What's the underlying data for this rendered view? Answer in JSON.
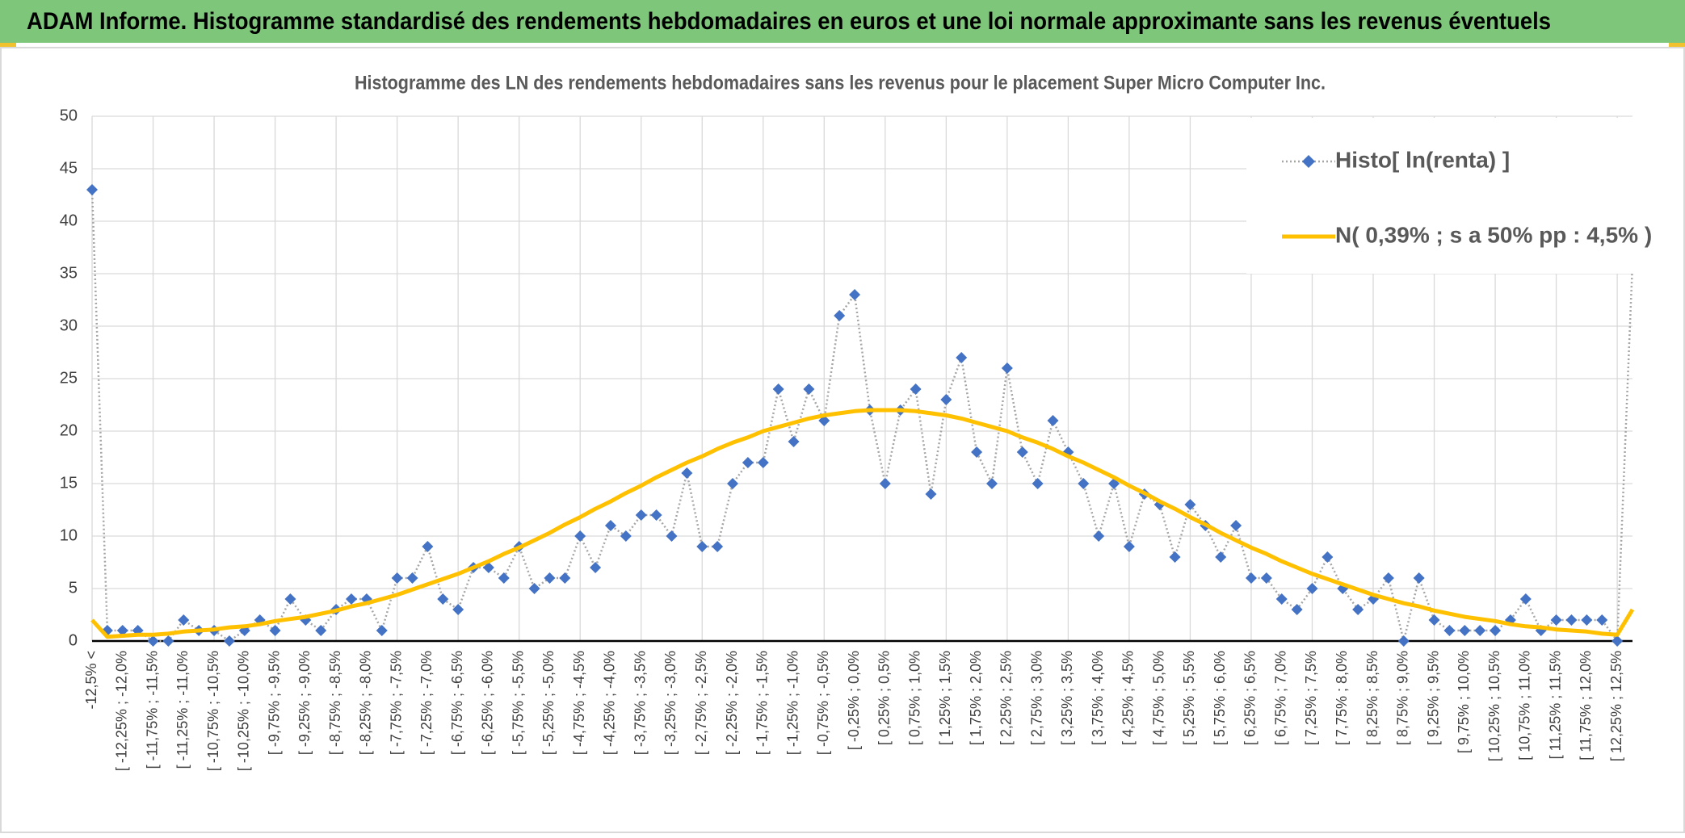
{
  "chart_data": {
    "type": "line",
    "title": "ADAM Informe. Histogramme standardisé des rendements hebdomadaires en euros et une loi normale approximante sans les revenus éventuels",
    "subtitle": "Histogramme des LN des rendements hebdomadaires sans les revenus pour le placement Super Micro Computer Inc.",
    "categories": [
      "-12,5% <",
      null,
      "[ -12,25% ; -12,0%",
      null,
      "[ -11,75% ; -11,5%",
      null,
      "[ -11,25% ; -11,0%",
      null,
      "[ -10,75% ; -10,5%",
      null,
      "[ -10,25% ; -10,0%",
      null,
      "[ -9,75% ; -9,5%",
      null,
      "[ -9,25% ; -9,0%",
      null,
      "[ -8,75% ; -8,5%",
      null,
      "[ -8,25% ; -8,0%",
      null,
      "[ -7,75% ; -7,5%",
      null,
      "[ -7,25% ; -7,0%",
      null,
      "[ -6,75% ; -6,5%",
      null,
      "[ -6,25% ; -6,0%",
      null,
      "[ -5,75% ; -5,5%",
      null,
      "[ -5,25% ; -5,0%",
      null,
      "[ -4,75% ; -4,5%",
      null,
      "[ -4,25% ; -4,0%",
      null,
      "[ -3,75% ; -3,5%",
      null,
      "[ -3,25% ; -3,0%",
      null,
      "[ -2,75% ; -2,5%",
      null,
      "[ -2,25% ; -2,0%",
      null,
      "[ -1,75% ; -1,5%",
      null,
      "[ -1,25% ; -1,0%",
      null,
      "[ -0,75% ; -0,5%",
      null,
      "[ -0,25% ; 0,0%",
      null,
      "[ 0,25% ; 0,5%",
      null,
      "[ 0,75% ; 1,0%",
      null,
      "[ 1,25% ; 1,5%",
      null,
      "[ 1,75% ; 2,0%",
      null,
      "[ 2,25% ; 2,5%",
      null,
      "[ 2,75% ; 3,0%",
      null,
      "[ 3,25% ; 3,5%",
      null,
      "[ 3,75% ; 4,0%",
      null,
      "[ 4,25% ; 4,5%",
      null,
      "[ 4,75% ; 5,0%",
      null,
      "[ 5,25% ; 5,5%",
      null,
      "[ 5,75% ; 6,0%",
      null,
      "[ 6,25% ; 6,5%",
      null,
      "[ 6,75% ; 7,0%",
      null,
      "[ 7,25% ; 7,5%",
      null,
      "[ 7,75% ; 8,0%",
      null,
      "[ 8,25% ; 8,5%",
      null,
      "[ 8,75% ; 9,0%",
      null,
      "[ 9,25% ; 9,5%",
      null,
      "[ 9,75% ; 10,0%",
      null,
      "[ 10,25% ; 10,5%",
      null,
      "[ 10,75% ; 11,0%",
      null,
      "[ 11,25% ; 11,5%",
      null,
      "[ 11,75% ; 12,0%",
      null,
      "[ 12,25% ; 12,5%",
      null
    ],
    "series": [
      {
        "name": "Histo[ ln(renta) ]",
        "color": "#4472c4",
        "line_color": "#a6a6a6",
        "marker": "diamond",
        "values": [
          43,
          1,
          1,
          1,
          0,
          0,
          2,
          1,
          1,
          0,
          1,
          2,
          1,
          4,
          2,
          1,
          3,
          4,
          4,
          1,
          6,
          6,
          9,
          4,
          3,
          7,
          7,
          6,
          9,
          5,
          6,
          6,
          10,
          7,
          11,
          10,
          12,
          12,
          10,
          16,
          9,
          9,
          15,
          17,
          17,
          24,
          19,
          24,
          21,
          31,
          33,
          22,
          15,
          22,
          24,
          14,
          23,
          27,
          18,
          15,
          26,
          18,
          15,
          21,
          18,
          15,
          10,
          15,
          9,
          14,
          13,
          8,
          13,
          11,
          8,
          11,
          6,
          6,
          4,
          3,
          5,
          8,
          5,
          3,
          4,
          6,
          0,
          6,
          2,
          1,
          1,
          1,
          1,
          2,
          4,
          1,
          2,
          2,
          2,
          2,
          0,
          36
        ]
      },
      {
        "name": "N( 0,39% ; s a 50% pp : 4,5% )",
        "color": "#ffc000",
        "values": [
          2,
          0.4,
          0.5,
          0.6,
          0.6,
          0.7,
          0.9,
          1.0,
          1.1,
          1.3,
          1.4,
          1.6,
          1.9,
          2.1,
          2.3,
          2.6,
          2.9,
          3.3,
          3.6,
          4.0,
          4.4,
          4.9,
          5.4,
          5.9,
          6.4,
          7.0,
          7.6,
          8.3,
          8.9,
          9.6,
          10.3,
          11.1,
          11.8,
          12.6,
          13.3,
          14.1,
          14.8,
          15.6,
          16.3,
          17.0,
          17.6,
          18.3,
          18.9,
          19.4,
          20.0,
          20.4,
          20.8,
          21.2,
          21.5,
          21.7,
          21.9,
          22.0,
          22.0,
          22.0,
          21.9,
          21.7,
          21.5,
          21.2,
          20.8,
          20.4,
          20.0,
          19.4,
          18.9,
          18.3,
          17.6,
          17.0,
          16.3,
          15.6,
          14.8,
          14.1,
          13.3,
          12.6,
          11.8,
          11.1,
          10.3,
          9.6,
          8.9,
          8.3,
          7.6,
          7.0,
          6.4,
          5.9,
          5.4,
          4.9,
          4.4,
          4.0,
          3.6,
          3.3,
          2.9,
          2.6,
          2.3,
          2.1,
          1.9,
          1.6,
          1.4,
          1.3,
          1.1,
          1.0,
          0.9,
          0.7,
          0.6,
          3
        ]
      }
    ],
    "ylim": [
      0,
      50
    ],
    "yticks": [
      0,
      5,
      10,
      15,
      20,
      25,
      30,
      35,
      40,
      45,
      50
    ],
    "grid": true,
    "legend": "upper right"
  }
}
